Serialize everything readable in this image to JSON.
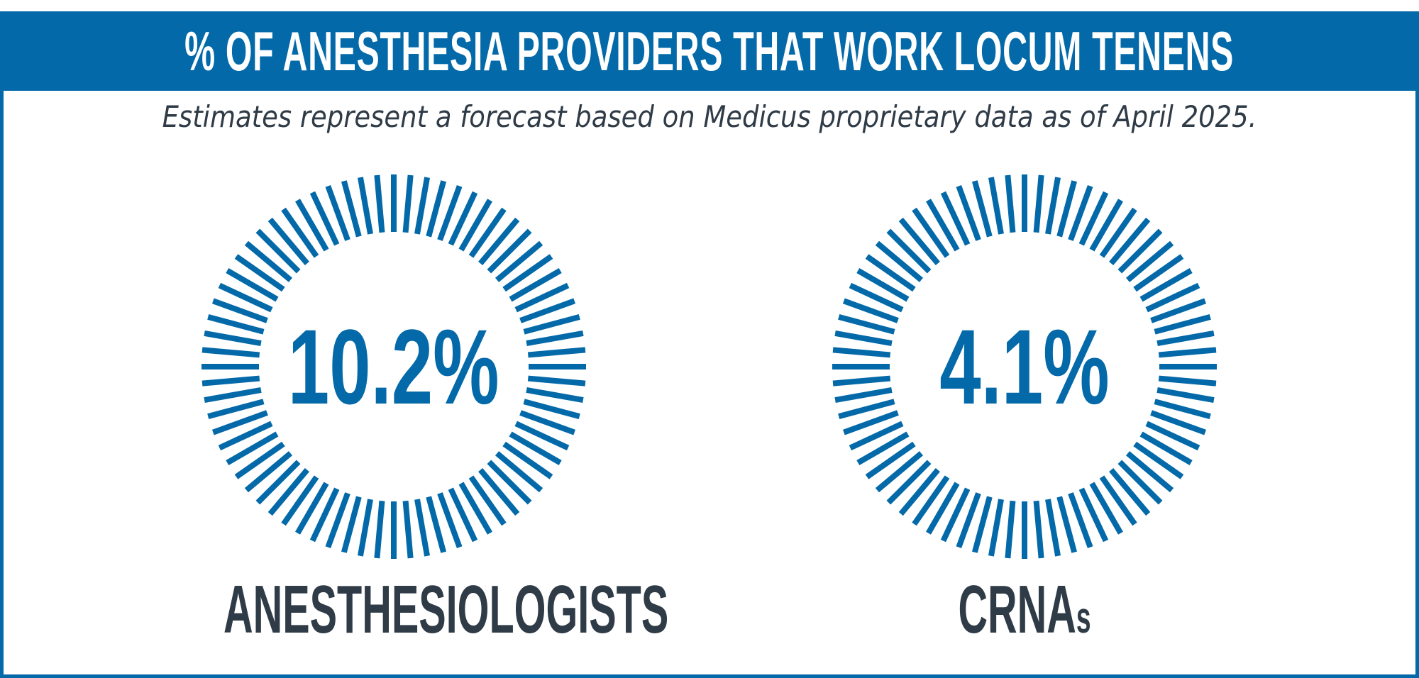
{
  "header": {
    "title": "% OF ANESTHESIA PROVIDERS THAT WORK LOCUM TENENS",
    "subtitle": "Estimates represent a forecast based on Medicus proprietary data as of April 2025."
  },
  "colors": {
    "accent": "#0369A8",
    "text_dark": "#2F3B46",
    "background": "#FFFFFF"
  },
  "panels": [
    {
      "value": "10.2%",
      "label": "ANESTHESIOLOGISTS",
      "label_main": "ANESTHESIOLOGISTS",
      "label_suffix": ""
    },
    {
      "value": "4.1%",
      "label": "CRNAs",
      "label_main": "CRNA",
      "label_suffix": "s"
    }
  ],
  "chart_data": {
    "type": "table",
    "title": "% OF ANESTHESIA PROVIDERS THAT WORK LOCUM TENENS",
    "subtitle": "Estimates represent a forecast based on Medicus proprietary data as of April 2025.",
    "categories": [
      "ANESTHESIOLOGISTS",
      "CRNAs"
    ],
    "values": [
      10.2,
      4.1
    ],
    "unit": "%",
    "decoration": "radial tick-mark ring (72 ticks) around each value"
  }
}
